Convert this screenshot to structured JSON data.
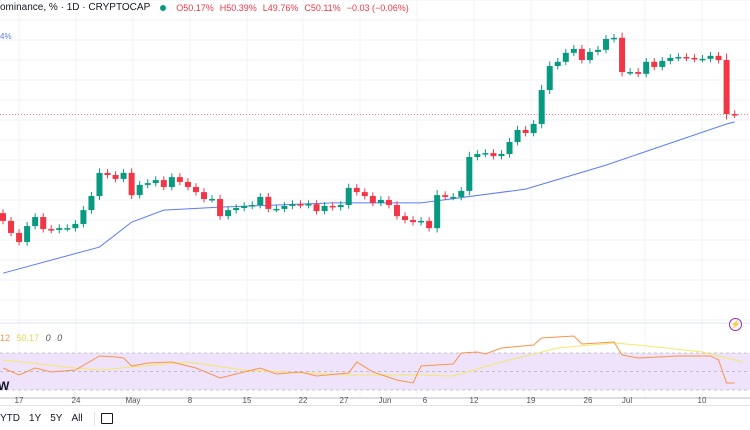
{
  "header": {
    "symbol_title": "ominance, % · 1D · CRYPTOCAP",
    "open": "O50.17%",
    "high": "H50.39%",
    "low": "L49.76%",
    "close": "C50.11%",
    "change": "−0.03 (−0.06%)"
  },
  "ma_legend": "4%",
  "rsi_legend": {
    "rsi": "12",
    "ma": "50.17",
    "v1": "0",
    "v2": "0"
  },
  "watermark": "W",
  "date_labels": [
    "17",
    "24",
    "May",
    "8",
    "15",
    "22",
    "27",
    "Jun",
    "6",
    "12",
    "19",
    "26",
    "Jul",
    "10"
  ],
  "toolbar": {
    "ranges": [
      "YTD",
      "1Y",
      "5Y",
      "All"
    ]
  },
  "colors": {
    "up": "#089981",
    "down": "#f23645",
    "ma": "#5b7cf5",
    "rsi": "#f7954a",
    "rsi_ma": "#f5e76a",
    "rsi_band": "#efe3fb"
  },
  "chart_data": {
    "type": "candlestick",
    "first_open": 46.83,
    "closes": [
      46.57,
      46.17,
      45.87,
      46.4,
      46.7,
      46.3,
      46.27,
      46.33,
      46.33,
      46.47,
      46.93,
      47.4,
      48.17,
      48.1,
      47.97,
      48.17,
      47.43,
      47.77,
      47.83,
      47.93,
      47.7,
      48.03,
      47.87,
      47.7,
      47.53,
      47.3,
      47.3,
      46.73,
      46.93,
      47.0,
      47.07,
      47.1,
      47.37,
      46.97,
      46.97,
      47.07,
      47.13,
      47.1,
      47.13,
      46.9,
      47.07,
      47.03,
      47.1,
      47.67,
      47.53,
      47.4,
      47.17,
      47.27,
      47.1,
      46.73,
      46.6,
      46.53,
      46.57,
      46.33,
      47.43,
      47.37,
      47.37,
      47.57,
      48.7,
      48.8,
      48.83,
      48.73,
      48.8,
      49.2,
      49.6,
      49.5,
      49.8,
      50.93,
      51.73,
      51.87,
      52.17,
      52.3,
      51.93,
      52.2,
      52.27,
      52.63,
      52.67,
      51.53,
      51.53,
      51.47,
      51.87,
      51.7,
      51.9,
      52.0,
      52.03,
      52.0,
      51.97,
      51.97,
      52.07,
      51.93,
      50.13,
      50.11
    ],
    "yrange": [
      43.27,
      53.93
    ],
    "ma": [
      [
        0,
        44.83
      ],
      [
        12,
        45.7
      ],
      [
        16,
        46.53
      ],
      [
        20,
        46.93
      ],
      [
        27,
        47.03
      ],
      [
        41,
        47.17
      ],
      [
        52,
        47.17
      ],
      [
        65,
        47.63
      ],
      [
        75,
        48.43
      ],
      [
        90,
        49.8
      ],
      [
        91,
        49.87
      ]
    ],
    "rsi": [
      [
        0,
        53.8
      ],
      [
        2,
        46.2
      ],
      [
        4,
        53.8
      ],
      [
        6,
        49.5
      ],
      [
        9,
        51.6
      ],
      [
        12,
        66.8
      ],
      [
        14,
        65.7
      ],
      [
        15,
        64.6
      ],
      [
        16,
        55.9
      ],
      [
        18,
        59.2
      ],
      [
        21,
        60.3
      ],
      [
        24,
        53.8
      ],
      [
        27,
        43.0
      ],
      [
        29,
        47.3
      ],
      [
        32,
        53.8
      ],
      [
        34,
        47.3
      ],
      [
        37,
        49.5
      ],
      [
        39,
        45.1
      ],
      [
        43,
        48.4
      ],
      [
        44,
        60.3
      ],
      [
        46,
        49.5
      ],
      [
        49,
        40.8
      ],
      [
        51,
        37.6
      ],
      [
        52,
        55.9
      ],
      [
        56,
        58.1
      ],
      [
        57,
        70.0
      ],
      [
        59,
        71.1
      ],
      [
        60,
        68.9
      ],
      [
        62,
        75.4
      ],
      [
        66,
        78.6
      ],
      [
        67,
        86.2
      ],
      [
        71,
        88.4
      ],
      [
        72,
        79.7
      ],
      [
        76,
        81.9
      ],
      [
        77,
        67.8
      ],
      [
        79,
        64.6
      ],
      [
        84,
        66.8
      ],
      [
        88,
        66.8
      ],
      [
        89,
        62.5
      ],
      [
        90,
        37.6
      ],
      [
        91,
        37.6
      ]
    ],
    "rsi_ma": [
      [
        0,
        62.4
      ],
      [
        9,
        53.8
      ],
      [
        12,
        51.6
      ],
      [
        23,
        60.3
      ],
      [
        30,
        51.6
      ],
      [
        35,
        49.5
      ],
      [
        43,
        46.2
      ],
      [
        52,
        46.2
      ],
      [
        56,
        45.1
      ],
      [
        62,
        60.3
      ],
      [
        69,
        75.4
      ],
      [
        76,
        80.8
      ],
      [
        79,
        78.6
      ],
      [
        87,
        71.1
      ],
      [
        92,
        60.3
      ]
    ],
    "rsi_band": [
      30,
      70
    ],
    "last_price": 50.11
  }
}
